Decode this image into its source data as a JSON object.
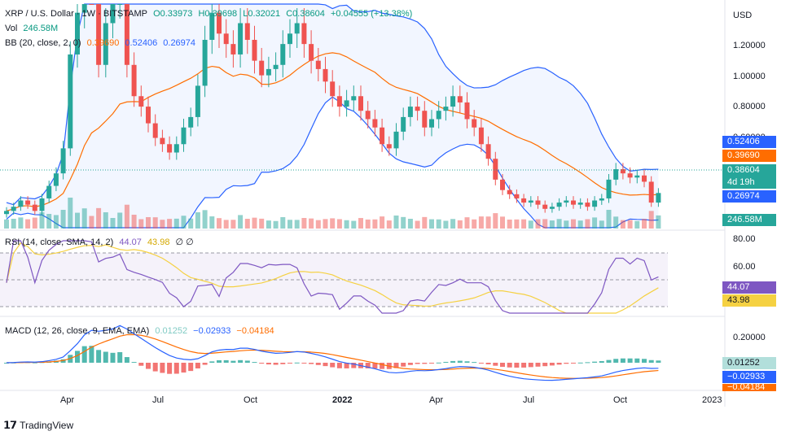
{
  "header": {
    "symbol": "XRP / U.S. Dollar · 1W · BITSTAMP",
    "ohlc": {
      "o": "O0.33973",
      "h": "H0.39698",
      "l": "L0.32021",
      "c": "C0.38604",
      "chg": "+0.04555 (+13.38%)"
    },
    "vol_label": "Vol",
    "vol_value": "246.58M",
    "bb_label": "BB (20, close, 2, 0)",
    "bb_basis": "0.39690",
    "bb_upper": "0.52406",
    "bb_lower": "0.26974"
  },
  "rsi": {
    "label": "RSI (14, close, SMA, 14, 2)",
    "rsi_value": "44.07",
    "sma_value": "43.98",
    "extra": "∅ ∅"
  },
  "macd": {
    "label": "MACD (12, 26, close, 9, EMA, EMA)",
    "hist": "0.01252",
    "macd": "−0.02933",
    "signal": "−0.04184"
  },
  "price_axis": {
    "currency": "USD",
    "ticks": [
      "1.20000",
      "1.00000",
      "0.80000",
      "0.60000"
    ]
  },
  "rsi_axis": {
    "ticks": [
      "80.00",
      "60.00"
    ]
  },
  "macd_axis": {
    "ticks": [
      "0.20000"
    ]
  },
  "time_axis": [
    "Apr",
    "Jul",
    "Oct",
    "2022",
    "Apr",
    "Jul",
    "Oct",
    "2023"
  ],
  "tags": {
    "bb_upper": "0.52406",
    "bb_basis": "0.39690",
    "price": "0.38604",
    "countdown": "4d 19h",
    "bb_lower": "0.26974",
    "volume": "246.58M",
    "rsi": "44.07",
    "rsi_sma": "43.98",
    "macd_hist": "0.01252",
    "macd": "−0.02933",
    "signal": "−0.04184"
  },
  "brand": "TradingView",
  "colors": {
    "up": "#26a69a",
    "down": "#ef5350",
    "bb_band": "#2962ff",
    "bb_basis": "#ff6d00",
    "rsi": "#7e57c2",
    "rsi_sma": "#f5d142"
  },
  "chart_data": {
    "type": "candlestick",
    "title": "XRP / U.S. Dollar · 1W · BITSTAMP",
    "y_range": [
      0.2,
      1.35
    ],
    "close": [
      0.3,
      0.32,
      0.35,
      0.33,
      0.3,
      0.36,
      0.42,
      0.48,
      0.6,
      1.05,
      1.25,
      1.6,
      1.4,
      1.0,
      1.2,
      1.3,
      1.55,
      1.0,
      0.85,
      0.8,
      0.72,
      0.65,
      0.62,
      0.58,
      0.62,
      0.7,
      0.75,
      0.9,
      1.12,
      1.25,
      1.15,
      1.1,
      1.05,
      1.2,
      1.12,
      1.02,
      0.95,
      0.98,
      1.0,
      1.1,
      1.15,
      1.2,
      1.1,
      1.02,
      0.98,
      0.92,
      0.85,
      0.8,
      0.83,
      0.85,
      0.78,
      0.74,
      0.7,
      0.62,
      0.6,
      0.68,
      0.75,
      0.8,
      0.78,
      0.7,
      0.74,
      0.78,
      0.8,
      0.85,
      0.82,
      0.74,
      0.7,
      0.62,
      0.55,
      0.45,
      0.4,
      0.38,
      0.36,
      0.34,
      0.35,
      0.33,
      0.31,
      0.32,
      0.34,
      0.35,
      0.33,
      0.34,
      0.32,
      0.35,
      0.36,
      0.45,
      0.5,
      0.48,
      0.46,
      0.47,
      0.44,
      0.34,
      0.386
    ],
    "volume_max_label": "246.58M",
    "bb_last": {
      "upper": 0.52406,
      "basis": 0.3969,
      "lower": 0.26974
    },
    "rsi_last": 44.07,
    "rsi_sma_last": 43.98,
    "macd_last": {
      "hist": 0.01252,
      "macd": -0.02933,
      "signal": -0.04184
    }
  }
}
